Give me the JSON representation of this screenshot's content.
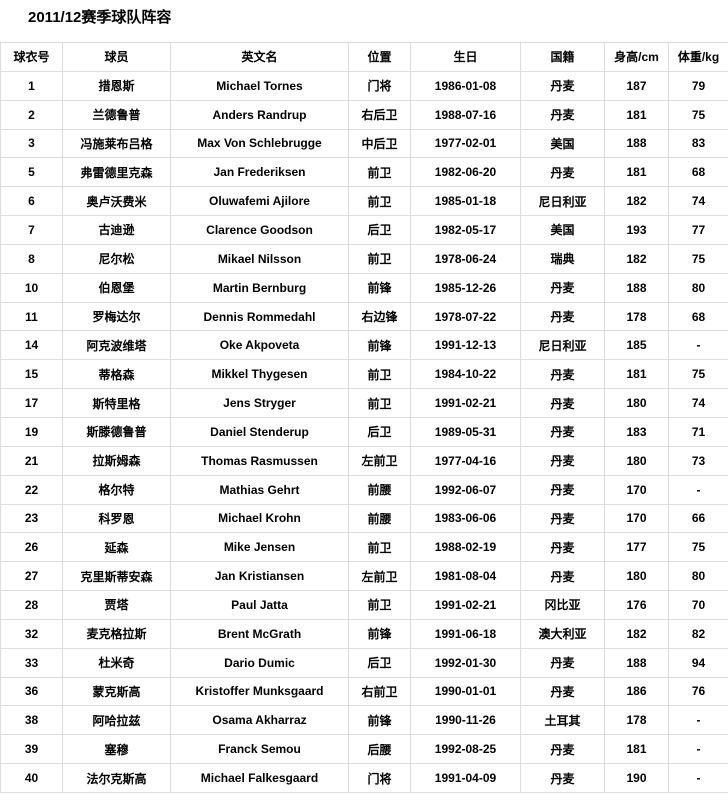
{
  "page": {
    "title": "2011/12赛季球队阵容"
  },
  "table": {
    "headers": [
      "球衣号",
      "球员",
      "英文名",
      "位置",
      "生日",
      "国籍",
      "身高/cm",
      "体重/kg"
    ],
    "rows": [
      [
        "1",
        "措恩斯",
        "Michael Tornes",
        "门将",
        "1986-01-08",
        "丹麦",
        "187",
        "79"
      ],
      [
        "2",
        "兰德鲁普",
        "Anders Randrup",
        "右后卫",
        "1988-07-16",
        "丹麦",
        "181",
        "75"
      ],
      [
        "3",
        "冯施莱布吕格",
        "Max Von Schlebrugge",
        "中后卫",
        "1977-02-01",
        "美国",
        "188",
        "83"
      ],
      [
        "5",
        "弗雷德里克森",
        "Jan Frederiksen",
        "前卫",
        "1982-06-20",
        "丹麦",
        "181",
        "68"
      ],
      [
        "6",
        "奥卢沃费米",
        "Oluwafemi Ajilore",
        "前卫",
        "1985-01-18",
        "尼日利亚",
        "182",
        "74"
      ],
      [
        "7",
        "古迪逊",
        "Clarence Goodson",
        "后卫",
        "1982-05-17",
        "美国",
        "193",
        "77"
      ],
      [
        "8",
        "尼尔松",
        "Mikael Nilsson",
        "前卫",
        "1978-06-24",
        "瑞典",
        "182",
        "75"
      ],
      [
        "10",
        "伯恩堡",
        "Martin Bernburg",
        "前锋",
        "1985-12-26",
        "丹麦",
        "188",
        "80"
      ],
      [
        "11",
        "罗梅达尔",
        "Dennis Rommedahl",
        "右边锋",
        "1978-07-22",
        "丹麦",
        "178",
        "68"
      ],
      [
        "14",
        "阿克波维塔",
        "Oke Akpoveta",
        "前锋",
        "1991-12-13",
        "尼日利亚",
        "185",
        "-"
      ],
      [
        "15",
        "蒂格森",
        "Mikkel Thygesen",
        "前卫",
        "1984-10-22",
        "丹麦",
        "181",
        "75"
      ],
      [
        "17",
        "斯特里格",
        "Jens Stryger",
        "前卫",
        "1991-02-21",
        "丹麦",
        "180",
        "74"
      ],
      [
        "19",
        "斯滕德鲁普",
        "Daniel Stenderup",
        "后卫",
        "1989-05-31",
        "丹麦",
        "183",
        "71"
      ],
      [
        "21",
        "拉斯姆森",
        "Thomas Rasmussen",
        "左前卫",
        "1977-04-16",
        "丹麦",
        "180",
        "73"
      ],
      [
        "22",
        "格尔特",
        "Mathias Gehrt",
        "前腰",
        "1992-06-07",
        "丹麦",
        "170",
        "-"
      ],
      [
        "23",
        "科罗恩",
        "Michael Krohn",
        "前腰",
        "1983-06-06",
        "丹麦",
        "170",
        "66"
      ],
      [
        "26",
        "延森",
        "Mike Jensen",
        "前卫",
        "1988-02-19",
        "丹麦",
        "177",
        "75"
      ],
      [
        "27",
        "克里斯蒂安森",
        "Jan Kristiansen",
        "左前卫",
        "1981-08-04",
        "丹麦",
        "180",
        "80"
      ],
      [
        "28",
        "贾塔",
        "Paul Jatta",
        "前卫",
        "1991-02-21",
        "冈比亚",
        "176",
        "70"
      ],
      [
        "32",
        "麦克格拉斯",
        "Brent McGrath",
        "前锋",
        "1991-06-18",
        "澳大利亚",
        "182",
        "82"
      ],
      [
        "33",
        "杜米奇",
        "Dario Dumic",
        "后卫",
        "1992-01-30",
        "丹麦",
        "188",
        "94"
      ],
      [
        "36",
        "蒙克斯高",
        "Kristoffer Munksgaard",
        "右前卫",
        "1990-01-01",
        "丹麦",
        "186",
        "76"
      ],
      [
        "38",
        "阿哈拉兹",
        "Osama Akharraz",
        "前锋",
        "1990-11-26",
        "土耳其",
        "178",
        "-"
      ],
      [
        "39",
        "塞穆",
        "Franck Semou",
        "后腰",
        "1992-08-25",
        "丹麦",
        "181",
        "-"
      ],
      [
        "40",
        "法尔克斯高",
        "Michael Falkesgaard",
        "门将",
        "1991-04-09",
        "丹麦",
        "190",
        "-"
      ]
    ]
  }
}
